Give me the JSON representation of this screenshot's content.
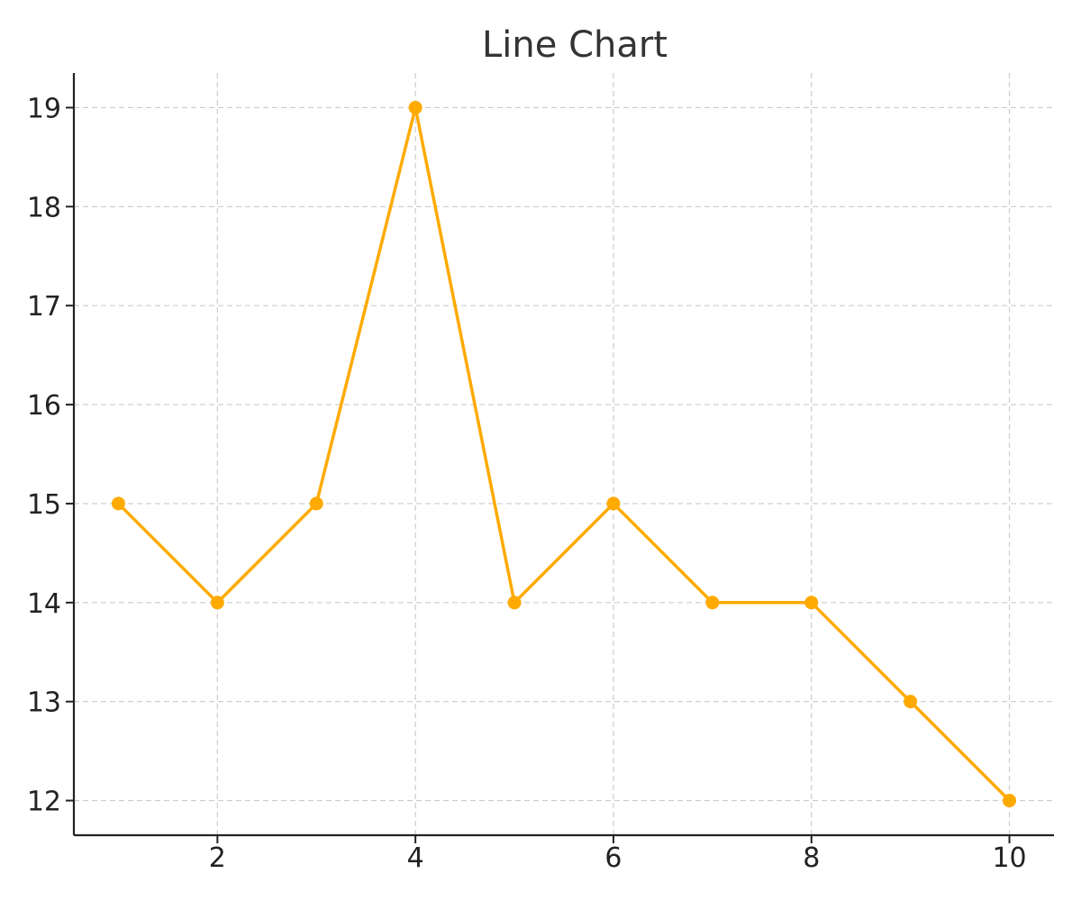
{
  "chart_data": {
    "type": "line",
    "title": "Line Chart",
    "xlabel": "",
    "ylabel": "",
    "x": [
      1,
      2,
      3,
      4,
      5,
      6,
      7,
      8,
      9,
      10
    ],
    "series": [
      {
        "values": [
          15,
          14,
          15,
          19,
          14,
          15,
          14,
          14,
          13,
          12
        ],
        "color": "#FFAA00"
      }
    ],
    "xlim": [
      0.55,
      10.45
    ],
    "ylim": [
      11.65,
      19.35
    ],
    "x_ticks": [
      2,
      4,
      6,
      8,
      10
    ],
    "y_ticks": [
      12,
      13,
      14,
      15,
      16,
      17,
      18,
      19
    ],
    "grid": true,
    "legend": "none"
  }
}
